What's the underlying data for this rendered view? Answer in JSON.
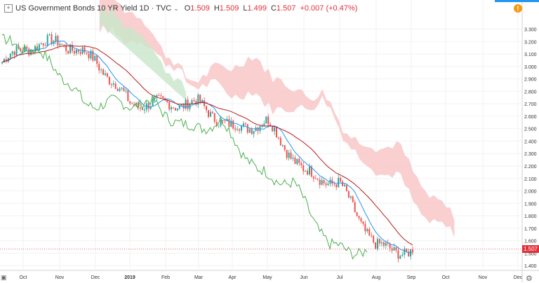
{
  "header": {
    "expand_icon": "plus-box-icon",
    "title": "US Government Bonds 10 YR Yield",
    "interval": "1D",
    "source": "TVC",
    "open_label": "O",
    "open": "1.509",
    "high_label": "H",
    "high": "1.509",
    "low_label": "L",
    "low": "1.499",
    "close_label": "C",
    "close": "1.507",
    "change": "+0.007 (+0.47%)"
  },
  "alert_badge": "!",
  "last_price_tag": "1.507",
  "colors": {
    "up": "#26a69a",
    "down": "#ef5350",
    "tenkan": "#2196f3",
    "kijun": "#b71c1c",
    "chikou": "#4caf50",
    "cloud_bear": "#f8c7c7",
    "cloud_bull": "#c8e6c9"
  },
  "chart_data": {
    "type": "line",
    "x_tick_labels": [
      "Oct",
      "Nov",
      "Dec",
      "2019",
      "Feb",
      "Mar",
      "Apr",
      "May",
      "Jun",
      "Jul",
      "Aug",
      "Sep",
      "Oct",
      "Nov",
      "Dec"
    ],
    "y_tick_labels": [
      "3.300",
      "3.200",
      "3.100",
      "3.000",
      "2.900",
      "2.800",
      "2.700",
      "2.600",
      "2.500",
      "2.400",
      "2.300",
      "2.200",
      "2.100",
      "2.000",
      "1.900",
      "1.800",
      "1.700",
      "1.600",
      "1.500",
      "1.400"
    ],
    "ylim": [
      1.35,
      3.32
    ],
    "close_series_monthly": {
      "x": [
        "Oct",
        "Nov",
        "Dec",
        "2019",
        "Feb",
        "Mar",
        "Apr",
        "May",
        "Jun",
        "Jul",
        "Aug",
        "Sep"
      ],
      "y": [
        3.15,
        3.2,
        3.05,
        2.7,
        2.7,
        2.7,
        2.5,
        2.55,
        2.15,
        2.05,
        1.55,
        1.507
      ]
    },
    "ichimoku": [
      "Tenkan-sen",
      "Kijun-sen",
      "Chikou span",
      "Cloud"
    ],
    "last_price": 1.507
  }
}
